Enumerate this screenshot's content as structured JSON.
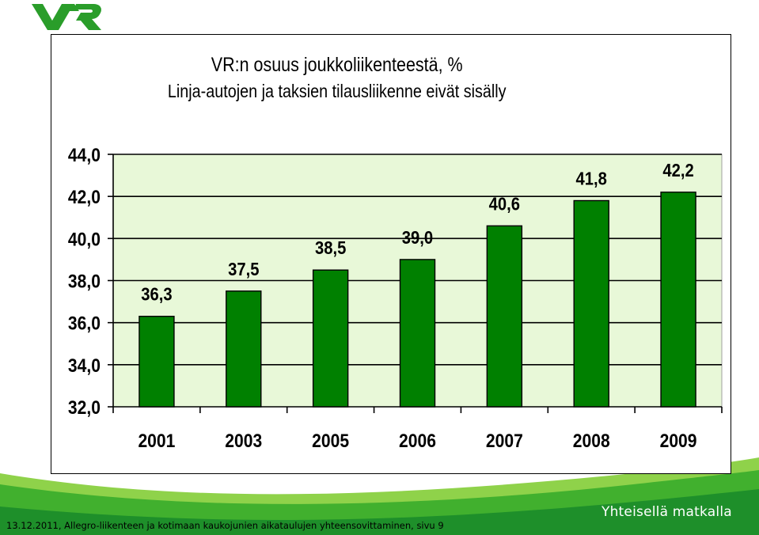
{
  "brand": {
    "logo_text": "VR",
    "slogan": "Yhteisellä matkalla",
    "brand_green": "#2a9d2a",
    "swoosh_light": "#8fd24a"
  },
  "footer": {
    "text": "13.12.2011, Allegro-liikenteen ja kotimaan kaukojunien aikataulujen yhteensovittaminen, sivu 9"
  },
  "chart_data": {
    "type": "bar",
    "title": "VR:n osuus joukkoliikenteestä, %",
    "subtitle": "Linja-autojen ja taksien tilausliikenne eivät sisälly",
    "categories": [
      "2001",
      "2003",
      "2005",
      "2006",
      "2007",
      "2008",
      "2009"
    ],
    "values": [
      36.3,
      37.5,
      38.5,
      39.0,
      40.6,
      41.8,
      42.2
    ],
    "value_labels": [
      "36,3",
      "37,5",
      "38,5",
      "39,0",
      "40,6",
      "41,8",
      "42,2"
    ],
    "ylim": [
      32,
      44
    ],
    "yticks": [
      32,
      34,
      36,
      38,
      40,
      42,
      44
    ],
    "ytick_labels": [
      "32,0",
      "34,0",
      "36,0",
      "38,0",
      "40,0",
      "42,0",
      "44,0"
    ],
    "grid": true,
    "plot_background": "#e8f8d8",
    "bar_color": "#008000",
    "legend": "none"
  }
}
